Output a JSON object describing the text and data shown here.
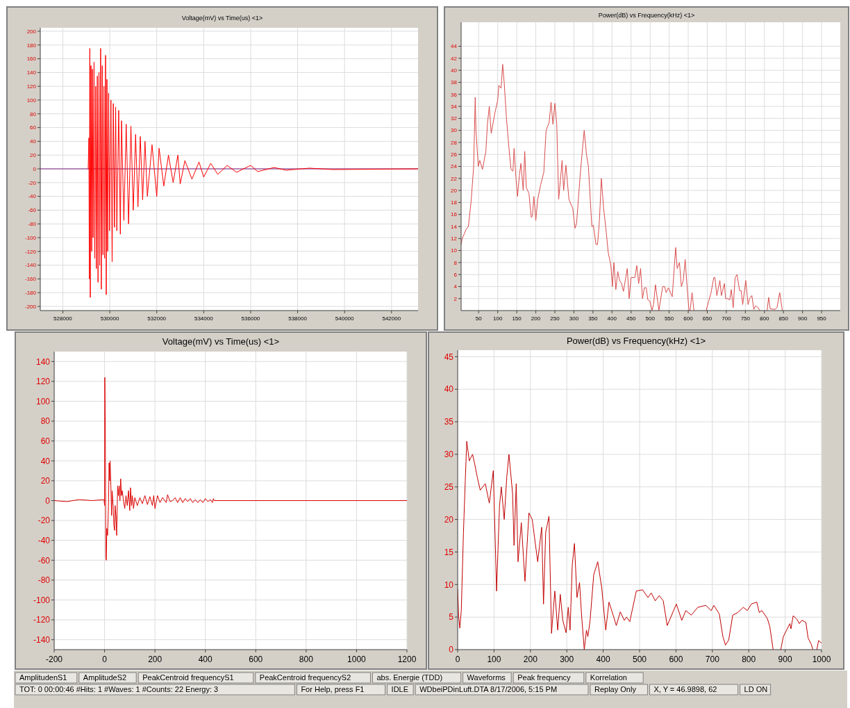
{
  "chart_data": [
    {
      "type": "line",
      "title": "Voltage(mV) vs Time(us) <1>",
      "xlim": [
        527040,
        543130
      ],
      "ylim": [
        -206,
        205
      ],
      "xticks": [
        528000,
        530000,
        532000,
        534000,
        536000,
        538000,
        540000,
        542000
      ],
      "yticks": [
        -200,
        -180,
        -160,
        -140,
        -120,
        -100,
        -80,
        -60,
        -40,
        -20,
        0,
        20,
        40,
        60,
        80,
        100,
        120,
        140,
        160,
        180,
        200
      ],
      "grid": true,
      "series": [
        {
          "color": "#7f1f7f",
          "x": [
            527040,
            543130
          ],
          "values": [
            0,
            0
          ]
        },
        {
          "color": "#ff0000",
          "x": [
            529080,
            529110,
            529130,
            529150,
            529170,
            529200,
            529230,
            529260,
            529290,
            529330,
            529360,
            529400,
            529430,
            529470,
            529500,
            529540,
            529570,
            529610,
            529640,
            529680,
            529710,
            529750,
            529780,
            529820,
            529850,
            529880,
            529910,
            529950,
            529990,
            530050,
            530100,
            530150,
            530200,
            530250,
            530300,
            530380,
            530450,
            530500,
            530600,
            530700,
            530800,
            530900,
            531000,
            531100,
            531200,
            531300,
            531400,
            531500,
            531600,
            531800,
            532000,
            532100,
            532300,
            532500,
            532700,
            532900,
            533000,
            533200,
            533500,
            533800,
            534000,
            534300,
            534600,
            535000,
            535400,
            536000,
            536300,
            537000,
            537500,
            538500,
            539500,
            543130
          ],
          "values": [
            0,
            45,
            -160,
            175,
            -187,
            150,
            -120,
            145,
            -100,
            155,
            -130,
            120,
            -145,
            135,
            -165,
            140,
            -140,
            175,
            -175,
            150,
            -125,
            120,
            -130,
            165,
            -183,
            130,
            -120,
            110,
            -90,
            100,
            -135,
            95,
            -85,
            90,
            -90,
            85,
            -95,
            70,
            -75,
            65,
            -80,
            62,
            -60,
            50,
            -55,
            47,
            -45,
            40,
            -40,
            35,
            -40,
            30,
            -25,
            20,
            -20,
            20,
            -22,
            12,
            -15,
            10,
            -12,
            8,
            -8,
            5,
            -5,
            5,
            -4,
            2,
            -2,
            1,
            -1,
            0
          ]
        }
      ]
    },
    {
      "type": "line",
      "title": "Power(dB) vs Frequency(kHz) <1>",
      "xlim": [
        4,
        999
      ],
      "ylim": [
        0,
        48
      ],
      "xticks": [
        50,
        100,
        150,
        200,
        250,
        300,
        350,
        400,
        450,
        500,
        550,
        600,
        650,
        700,
        750,
        800,
        850,
        900,
        950
      ],
      "yticks": [
        2,
        4,
        6,
        8,
        10,
        12,
        14,
        16,
        18,
        20,
        22,
        24,
        26,
        28,
        30,
        32,
        34,
        36,
        38,
        40,
        42,
        44
      ],
      "grid": true,
      "series": [
        {
          "color": "#d94c4c",
          "x": [
            4,
            7,
            17,
            23,
            30,
            37,
            41,
            43,
            49,
            53,
            60,
            69,
            73,
            78,
            83,
            93,
            100,
            103,
            109,
            113,
            117,
            123,
            131,
            135,
            140,
            143,
            148,
            152,
            157,
            161,
            167,
            171,
            175,
            182,
            188,
            191,
            195,
            200,
            205,
            213,
            221,
            227,
            235,
            240,
            245,
            250,
            255,
            260,
            265,
            269,
            273,
            279,
            287,
            297,
            303,
            307,
            317,
            327,
            333,
            338,
            347,
            351,
            358,
            362,
            367,
            372,
            378,
            385,
            390,
            397,
            401,
            405,
            410,
            415,
            420,
            425,
            430,
            440,
            445,
            450,
            460,
            465,
            470,
            475,
            480,
            485,
            490,
            494,
            500,
            505,
            509,
            514,
            523,
            533,
            538,
            542,
            548,
            558,
            567,
            571,
            577,
            582,
            587,
            592,
            597,
            602,
            605,
            610,
            615,
            630,
            647,
            660,
            667,
            670,
            675,
            683,
            687,
            695,
            698,
            703,
            709,
            713,
            718,
            723,
            728,
            735,
            739,
            743,
            751,
            757,
            761,
            767,
            772,
            777,
            783,
            788,
            798,
            807,
            811,
            815,
            828,
            833,
            840,
            847
          ],
          "values": [
            11,
            12,
            13.5,
            14,
            18,
            24,
            35.5,
            30,
            24,
            25,
            23.5,
            26.5,
            31,
            34,
            29.5,
            33,
            35,
            37.5,
            37,
            41,
            38,
            32,
            26,
            23.5,
            23.2,
            27,
            22,
            19,
            22.5,
            24.5,
            20,
            26.5,
            20.5,
            19.5,
            15.5,
            15.7,
            19,
            15,
            18.5,
            21,
            23,
            30,
            31.3,
            34.7,
            31,
            34.5,
            31,
            18.5,
            22,
            25,
            20,
            24.2,
            18.5,
            17,
            13.7,
            14.5,
            23,
            30,
            26,
            24,
            14,
            14.2,
            11,
            11,
            15,
            22,
            17,
            13,
            9.7,
            7.5,
            4,
            8,
            3.5,
            6.5,
            5,
            4.5,
            3.2,
            7,
            2,
            5.5,
            5.5,
            7.5,
            4.5,
            7,
            2,
            3.8,
            3.8,
            1.8,
            1.5,
            0,
            1,
            4.3,
            0,
            4,
            4,
            3,
            3.8,
            2.3,
            10.5,
            7,
            8,
            4,
            5,
            8.5,
            4,
            0,
            0,
            3,
            0,
            null,
            0,
            3,
            5.5,
            5.5,
            2.5,
            5,
            2.5,
            4.5,
            2,
            2,
            1.8,
            3.5,
            0.5,
            5.5,
            6,
            3.3,
            3.3,
            1,
            5,
            1,
            2,
            2.5,
            0.2,
            0.8,
            0.5,
            0,
            null,
            0,
            2.2,
            0.3,
            0.2,
            0.5,
            3,
            0
          ]
        }
      ]
    },
    {
      "type": "line",
      "title": "Voltage(mV) vs Time(us) <1>",
      "xlim": [
        -200,
        1200
      ],
      "ylim": [
        -150,
        150
      ],
      "xticks": [
        -200,
        0,
        200,
        400,
        600,
        800,
        1000,
        1200
      ],
      "yticks": [
        -140,
        -120,
        -100,
        -80,
        -60,
        -40,
        -20,
        0,
        20,
        40,
        60,
        80,
        100,
        120,
        140
      ],
      "grid": true,
      "series": [
        {
          "color": "#dd0000",
          "x": [
            -200,
            -150,
            -100,
            -50,
            -2,
            0,
            1,
            3,
            5,
            7,
            9,
            12,
            16,
            18,
            20,
            22,
            25,
            28,
            30,
            34,
            37,
            40,
            42,
            45,
            48,
            52,
            55,
            58,
            61,
            64,
            67,
            70,
            75,
            80,
            85,
            90,
            95,
            100,
            103,
            107,
            110,
            115,
            120,
            130,
            140,
            150,
            160,
            170,
            180,
            190,
            195,
            200,
            210,
            220,
            230,
            245,
            250,
            260,
            270,
            280,
            290,
            300,
            310,
            320,
            330,
            340,
            350,
            360,
            370,
            380,
            390,
            400,
            410,
            420,
            428,
            432,
            435,
            1200
          ],
          "values": [
            0,
            -1,
            1,
            0,
            1,
            -5,
            124,
            67,
            -57,
            -60,
            -28,
            -35,
            0,
            38,
            20,
            40,
            15,
            -15,
            10,
            -5,
            -25,
            -30,
            -5,
            -15,
            -35,
            15,
            5,
            15,
            0,
            22,
            5,
            10,
            0,
            -8,
            5,
            -5,
            10,
            -10,
            13,
            -5,
            5,
            -8,
            3,
            -5,
            3,
            -3,
            5,
            -4,
            4,
            -5,
            5,
            -8,
            5,
            -2,
            3,
            -2,
            6,
            -1,
            0,
            3,
            -2,
            3,
            -2,
            2,
            -1,
            2,
            -2,
            1,
            -2,
            1,
            -2,
            2,
            -1,
            1,
            -2,
            2,
            0,
            0
          ]
        }
      ]
    },
    {
      "type": "line",
      "title": "Power(dB) vs Frequency(kHz) <1>",
      "xlim": [
        0,
        1000
      ],
      "ylim": [
        0,
        46
      ],
      "xticks": [
        0,
        100,
        200,
        300,
        400,
        500,
        600,
        700,
        800,
        900,
        1000
      ],
      "yticks": [
        0,
        5,
        10,
        15,
        20,
        25,
        30,
        35,
        40,
        45
      ],
      "grid": true,
      "series": [
        {
          "color": "#c00000",
          "x": [
            0,
            3,
            6,
            10,
            16,
            21,
            25,
            32,
            41,
            47,
            54,
            62,
            76,
            87,
            98,
            107,
            115,
            120,
            128,
            135,
            141,
            151,
            155,
            161,
            166,
            175,
            185,
            196,
            205,
            220,
            231,
            236,
            242,
            251,
            258,
            267,
            275,
            282,
            289,
            298,
            304,
            309,
            315,
            321,
            328,
            335,
            341,
            348,
            354,
            358,
            364,
            374,
            385,
            396,
            407,
            416,
            429,
            436,
            447,
            458,
            464,
            473,
            491,
            508,
            523,
            532,
            543,
            554,
            565,
            576,
            601,
            616,
            627,
            642,
            660,
            682,
            697,
            704,
            719,
            729,
            736,
            745,
            756,
            770,
            785,
            796,
            807,
            822,
            829,
            836,
            851,
            858,
            867,
            877,
            888,
            895,
            913,
            916,
            922,
            932,
            939,
            946,
            957,
            963,
            972,
            976,
            982,
            987,
            992,
            1000
          ],
          "values": [
            9.3,
            5,
            3.3,
            6,
            18,
            26,
            32,
            29,
            30,
            28.5,
            26.5,
            24.5,
            25.5,
            22.5,
            27.5,
            9,
            22,
            25,
            20,
            26.5,
            30,
            24,
            16,
            25.5,
            13.5,
            19.5,
            10.5,
            21,
            20,
            13.5,
            18.8,
            7,
            18,
            20.5,
            2.5,
            9,
            3,
            8.5,
            4.5,
            2.6,
            6.5,
            3,
            13,
            16.3,
            8,
            10.3,
            5,
            0,
            3,
            2,
            4.5,
            11.5,
            13.5,
            9.5,
            3,
            7.3,
            5,
            3.7,
            5.8,
            4.5,
            5,
            4.3,
            9,
            9.2,
            8,
            8.7,
            7.5,
            8.3,
            7.5,
            3.7,
            7,
            4.5,
            6,
            5.3,
            6.5,
            6.8,
            6,
            6.8,
            5.5,
            2,
            0.7,
            1.5,
            5.3,
            5.7,
            6.5,
            6,
            7,
            7.3,
            5.7,
            6,
            4.8,
            3.5,
            0,
            null,
            0,
            2,
            4,
            3.2,
            5.2,
            4.7,
            4,
            4.5,
            4.2,
            1.8,
            0.8,
            0,
            null,
            0,
            1.4,
            1
          ]
        }
      ]
    },
    {
      "type": "other",
      "annotations": [
        "AmplitudenS1",
        "AmplitudeS2",
        "PeakCentroid frequencyS1",
        "PeakCentroid frequencyS2",
        "abs. Energie (TDD)",
        "Waveforms",
        "Peak frequency",
        "Korrelation",
        "TOT:  0 00:00:46  #Hits: 1  #Waves: 1  #Counts: 22  Energy: 3",
        "For Help, press F1",
        "IDLE",
        "WDbeiPDinLuft.DTA  8/17/2006, 5:15 PM",
        "Replay Only",
        "X, Y = 46.9898, 62",
        "LD ON"
      ]
    }
  ]
}
